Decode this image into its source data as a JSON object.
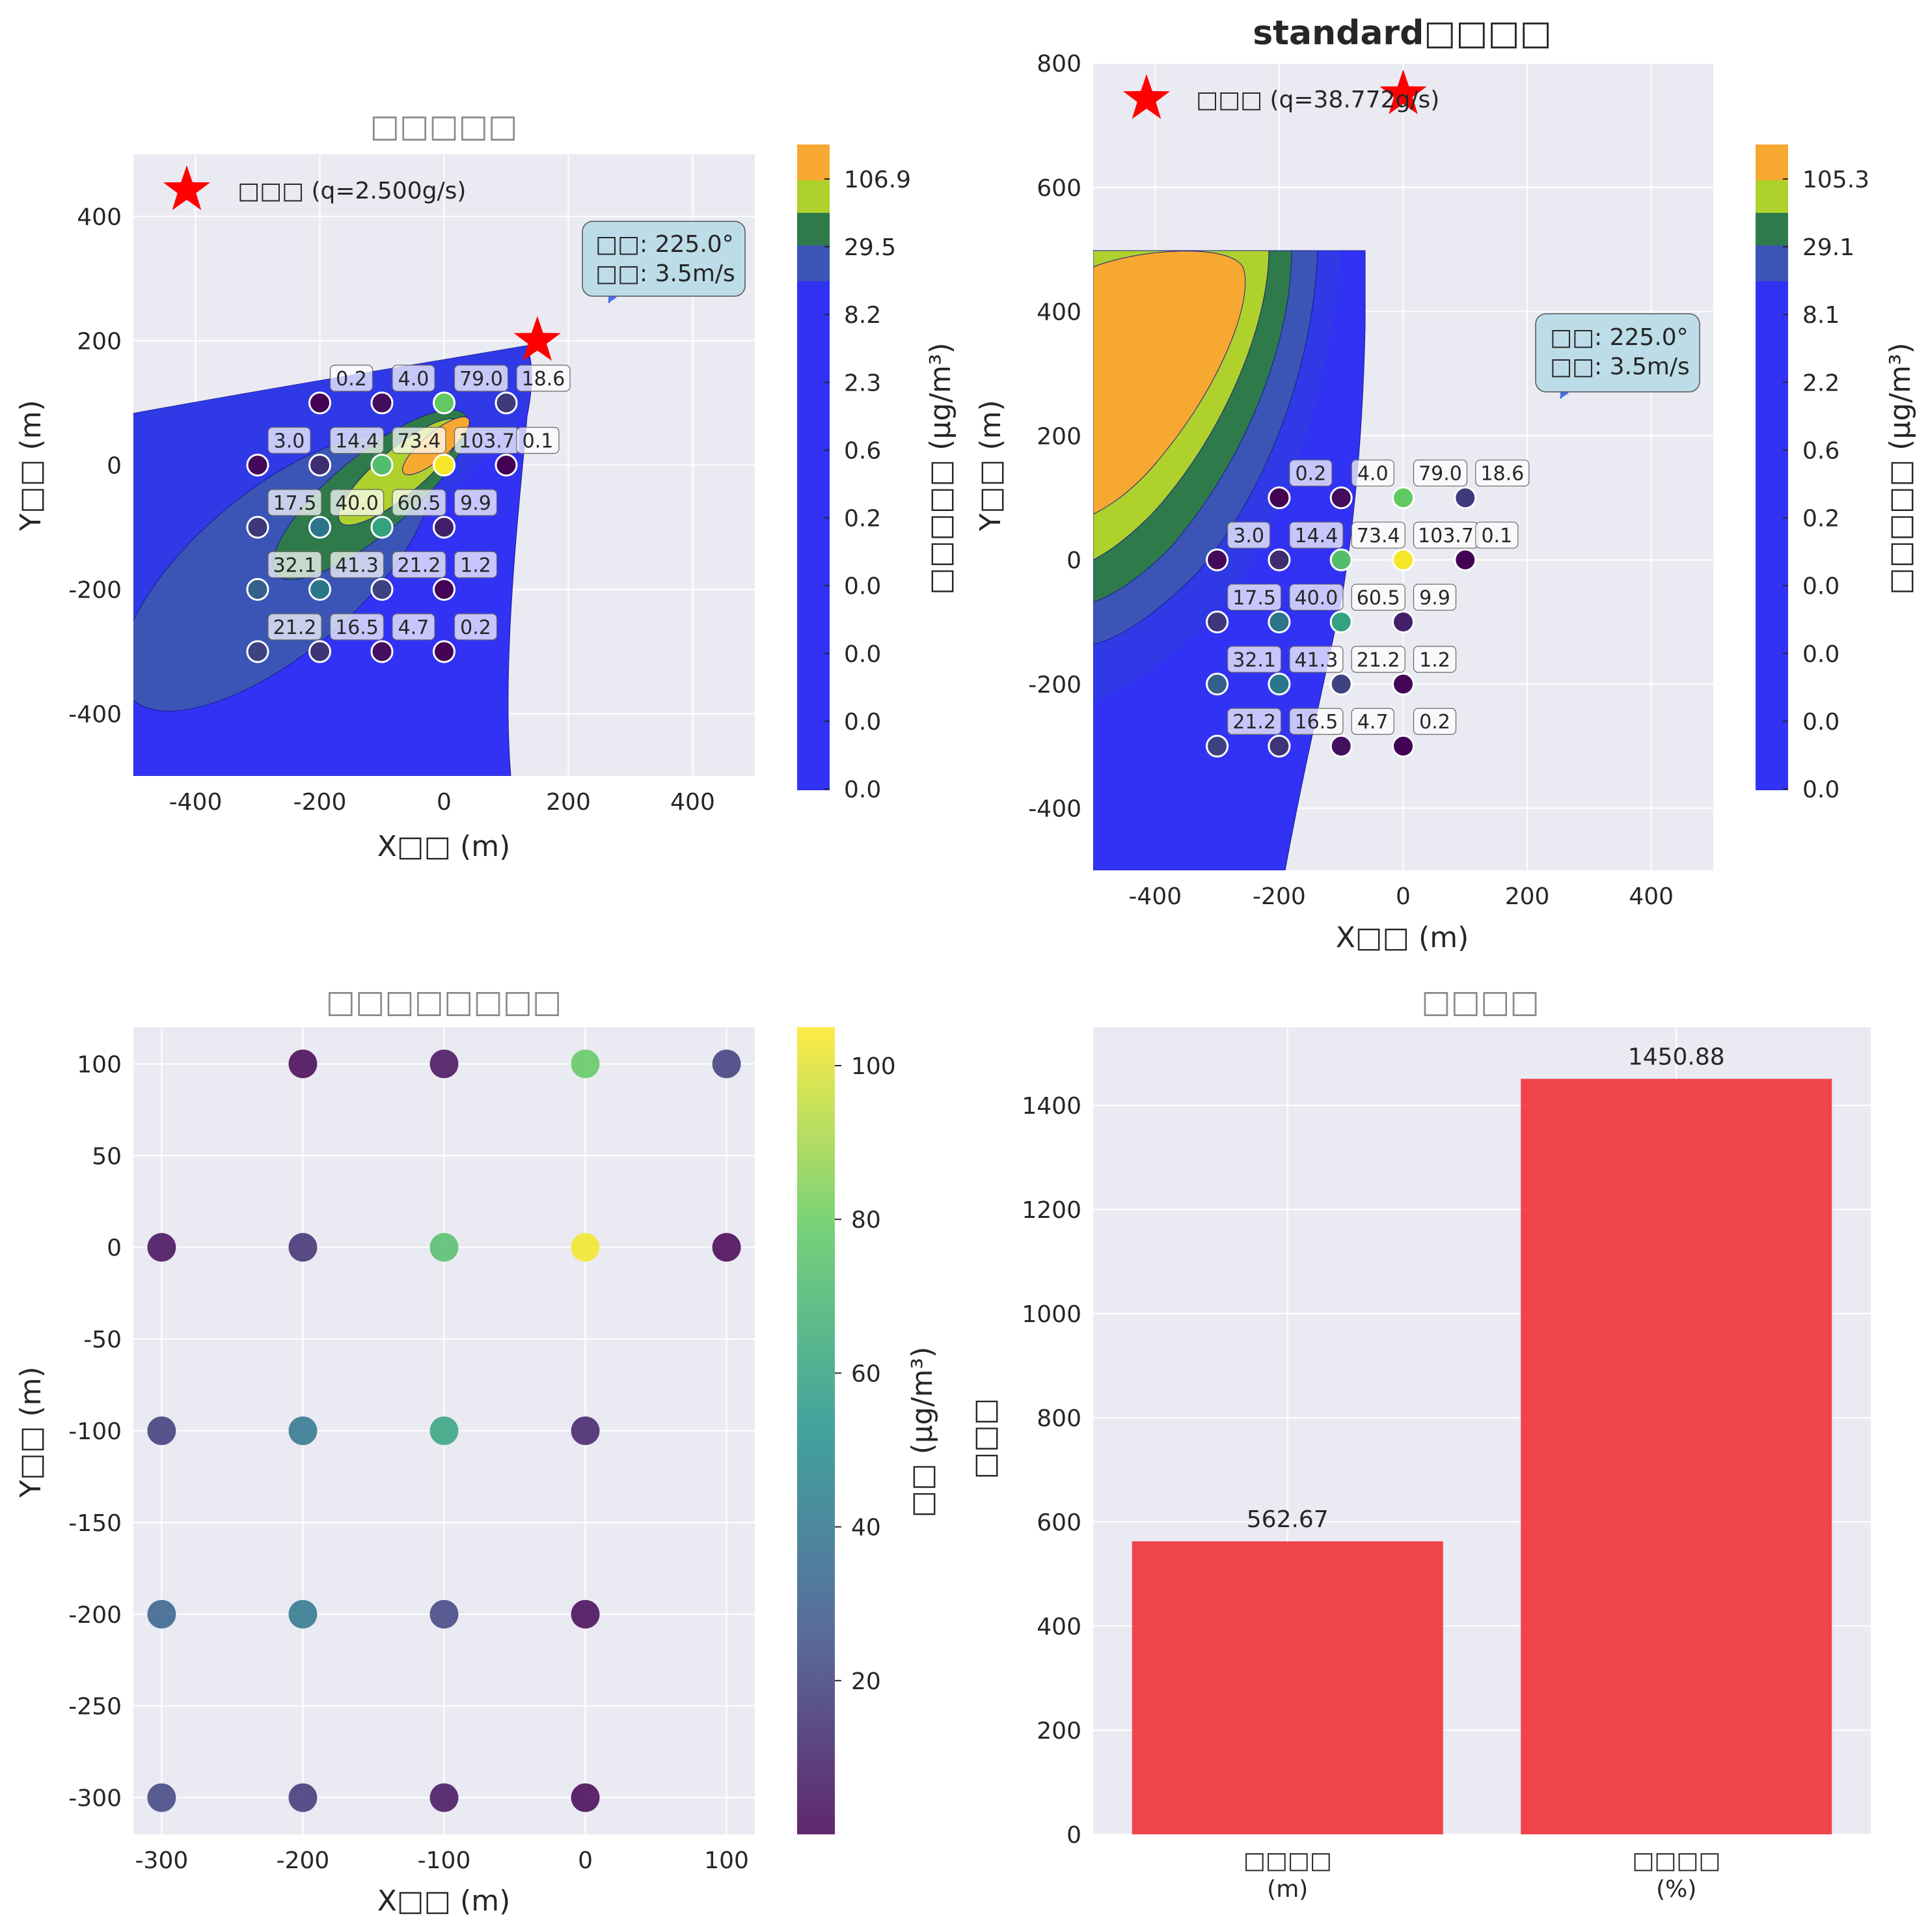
{
  "labels": {
    "x_axis": "X□□ (m)",
    "y_axis": "Y□□ (m)",
    "colorbar_conc": "□□□□□ (μg/m³)",
    "colorbar_scatter": "□□ (μg/m³)",
    "wind_line1": "□□: 225.0°",
    "wind_line2": "□□: 3.5m/s"
  },
  "chart_data": [
    {
      "id": "panel-top-left",
      "type": "contour",
      "title": "□□□□□",
      "xlim": [
        -500,
        500
      ],
      "ylim": [
        -500,
        500
      ],
      "xticks": [
        -400,
        -200,
        0,
        200,
        400
      ],
      "yticks": [
        -400,
        -200,
        0,
        200,
        400
      ],
      "source": {
        "x": 150,
        "y": 200,
        "legend": "□□□ (q=2.500g/s)"
      },
      "colorbar_ticks": [
        "106.9",
        "29.5",
        "8.2",
        "2.3",
        "0.6",
        "0.2",
        "0.0",
        "0.0",
        "0.0",
        "0.0"
      ],
      "grid": true
    },
    {
      "id": "panel-top-right",
      "type": "contour",
      "title": "standard□□□□",
      "xlim": [
        -500,
        500
      ],
      "ylim": [
        -500,
        800
      ],
      "xticks": [
        -400,
        -200,
        0,
        200,
        400
      ],
      "yticks": [
        -400,
        -200,
        0,
        200,
        400,
        600,
        800
      ],
      "source": {
        "x": 0,
        "y": 750,
        "legend": "□□□ (q=38.772g/s)"
      },
      "colorbar_ticks": [
        "105.3",
        "29.1",
        "8.1",
        "2.2",
        "0.6",
        "0.2",
        "0.0",
        "0.0",
        "0.0",
        "0.0"
      ],
      "grid": true
    },
    {
      "id": "panel-bottom-left",
      "type": "scatter",
      "title": "□□□□□□□□",
      "xlim": [
        -320,
        120
      ],
      "ylim": [
        -320,
        120
      ],
      "xticks": [
        -300,
        -200,
        -100,
        0,
        100
      ],
      "yticks": [
        -300,
        -250,
        -200,
        -150,
        -100,
        -50,
        0,
        50,
        100
      ],
      "colorbar_range": [
        0,
        105
      ],
      "colorbar_ticks": [
        20,
        40,
        60,
        80,
        100
      ],
      "grid": true
    },
    {
      "id": "panel-bottom-right",
      "type": "bar",
      "title": "□□□□",
      "categories": [
        "□□□□\n(m)",
        "□□□□\n(%)"
      ],
      "values": [
        562.67,
        1450.88
      ],
      "value_labels": [
        "562.67",
        "1450.88"
      ],
      "ylabel": "□□□",
      "ylim": [
        0,
        1550
      ],
      "yticks": [
        0,
        200,
        400,
        600,
        800,
        1000,
        1200,
        1400
      ],
      "color": "#f0282d",
      "grid": true
    }
  ],
  "observations": [
    {
      "x": -200,
      "y": 100,
      "value": 0.2,
      "label": "0.2"
    },
    {
      "x": -100,
      "y": 100,
      "value": 4.0,
      "label": "4.0"
    },
    {
      "x": 0,
      "y": 100,
      "value": 79.0,
      "label": "79.0"
    },
    {
      "x": 100,
      "y": 100,
      "value": 18.6,
      "label": "18.6"
    },
    {
      "x": -300,
      "y": 0,
      "value": 3.0,
      "label": "3.0"
    },
    {
      "x": -200,
      "y": 0,
      "value": 14.4,
      "label": "14.4"
    },
    {
      "x": -100,
      "y": 0,
      "value": 73.4,
      "label": "73.4"
    },
    {
      "x": 0,
      "y": 0,
      "value": 103.7,
      "label": "103.7"
    },
    {
      "x": 100,
      "y": 0,
      "value": 0.1,
      "label": "0.1"
    },
    {
      "x": -300,
      "y": -100,
      "value": 17.5,
      "label": "17.5"
    },
    {
      "x": -200,
      "y": -100,
      "value": 40.0,
      "label": "40.0"
    },
    {
      "x": -100,
      "y": -100,
      "value": 60.5,
      "label": "60.5"
    },
    {
      "x": 0,
      "y": -100,
      "value": 9.9,
      "label": "9.9"
    },
    {
      "x": -300,
      "y": -200,
      "value": 32.1,
      "label": "32.1"
    },
    {
      "x": -200,
      "y": -200,
      "value": 41.3,
      "label": "41.3"
    },
    {
      "x": -100,
      "y": -200,
      "value": 21.2,
      "label": "21.2"
    },
    {
      "x": 0,
      "y": -200,
      "value": 1.2,
      "label": "1.2"
    },
    {
      "x": -300,
      "y": -300,
      "value": 21.2,
      "label": "21.2"
    },
    {
      "x": -200,
      "y": -300,
      "value": 16.5,
      "label": "16.5"
    },
    {
      "x": -100,
      "y": -300,
      "value": 4.7,
      "label": "4.7"
    },
    {
      "x": 0,
      "y": -300,
      "value": 0.2,
      "label": "0.2"
    }
  ],
  "colors": {
    "plot_bg": "#eaeaf2",
    "grid": "#ffffff",
    "source_star": "#ff0000",
    "contour_base": "#3232f5",
    "bar": "#f0282d",
    "wind_box": "#bcdce8"
  }
}
